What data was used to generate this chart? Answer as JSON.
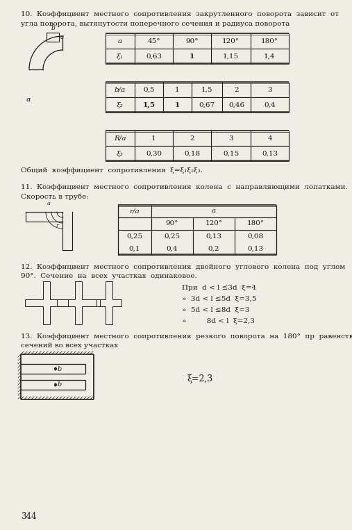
{
  "page_number": "344",
  "bg_color": "#f0ede4",
  "text_color": "#1a1a1a",
  "section10_title_line1": "10.  Коэффициент  местного  сопротивления  закрутленного  поворота  зависит  от",
  "section10_title_line2": "угла поворота, вытянутости поперечного сечения и радиуса поворота",
  "table1_headers": [
    "a",
    "45°",
    "90°",
    "120°",
    "180°"
  ],
  "table1_row1_label": "ξ₁",
  "table1_row1_vals": [
    "0,63",
    "1",
    "1,15",
    "1,4"
  ],
  "table2_headers": [
    "b/a",
    "0,5",
    "1",
    "1,5",
    "2",
    "3"
  ],
  "table2_row1_label": "ξ₂",
  "table2_row1_vals": [
    "1,5",
    "1",
    "0,67",
    "0,46",
    "0,4"
  ],
  "table3_headers": [
    "R/a",
    "1",
    "2",
    "3",
    "4"
  ],
  "table3_row1_label": "ξ₃",
  "table3_row1_vals": [
    "0,30",
    "0,18",
    "0,15",
    "0,13"
  ],
  "formula_text": "Общий  коэффициент  сопротивления  ξ=ξ₁ξ₂ξ₃.",
  "section11_title_line1": "11.  Коэффициент  местного  сопротивления  колена  с  направляющими  лопатками.",
  "section11_title_line2": "Скорость в трубе:",
  "table4_rja_header": "r/a",
  "table4_a_header": "a",
  "table4_sub_headers": [
    "90°",
    "120°",
    "180°"
  ],
  "table4_data": [
    [
      "0,25",
      "0,25",
      "0,13",
      "0,08"
    ],
    [
      "0,1",
      "0,4",
      "0,2",
      "0,13"
    ]
  ],
  "section12_title_line1": "12.  Коэффициент  местного  сопротивления  двойного  углового  колена  под  углом",
  "section12_title_line2": "90°.  Сечение  на  всех  участках  одинаковое.",
  "section12_conditions": [
    "При  d < l ≤3d  ξ=4",
    "»  3d < l ≤5d  ξ=3,5",
    "»  5d < l ≤8d  ξ=3",
    "»         8d < l  ξ=2,3"
  ],
  "section13_title_line1": "13.  Коэффициент  местного  сопротивления  резкого  поворота  на  180°  пр  равенстве",
  "section13_title_line2": "сечений во всех участках",
  "section13_formula": "ξ=2,3"
}
